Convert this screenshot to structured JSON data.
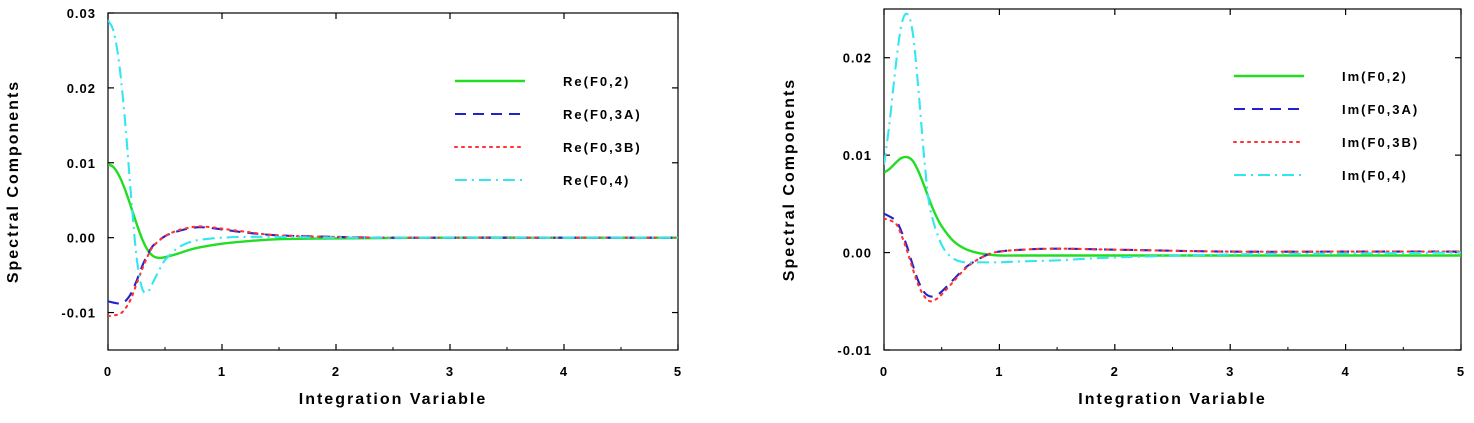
{
  "chart_data": [
    {
      "type": "line",
      "title": "",
      "xlabel": "Integration Variable",
      "ylabel": "Spectral Components",
      "xlim": [
        0,
        5
      ],
      "ylim": [
        -0.015,
        0.03
      ],
      "x_ticks": [
        "0",
        "1",
        "2",
        "3",
        "4",
        "5"
      ],
      "y_ticks": [
        "-0.01",
        "0.00",
        "0.01",
        "0.02",
        "0.03"
      ],
      "grid": false,
      "legend_position": "top-right",
      "series": [
        {
          "name": "Re(F0,2)",
          "color": "#22dd22",
          "style": "solid",
          "x": [
            0,
            0.05,
            0.1,
            0.15,
            0.2,
            0.25,
            0.3,
            0.35,
            0.4,
            0.45,
            0.5,
            0.6,
            0.7,
            0.8,
            1.0,
            1.2,
            1.5,
            2.0,
            3.0,
            4.0,
            5.0
          ],
          "y": [
            0.0098,
            0.0094,
            0.0082,
            0.0064,
            0.0042,
            0.0019,
            -0.0002,
            -0.0017,
            -0.0025,
            -0.0027,
            -0.0026,
            -0.0022,
            -0.0017,
            -0.0013,
            -0.0008,
            -0.0005,
            -0.0002,
            -0.0001,
            0.0,
            0.0,
            0.0
          ]
        },
        {
          "name": "Re(F0,3A)",
          "color": "#2222cc",
          "style": "dashed",
          "x": [
            0,
            0.1,
            0.15,
            0.2,
            0.25,
            0.3,
            0.35,
            0.4,
            0.5,
            0.6,
            0.7,
            0.8,
            0.9,
            1.0,
            1.2,
            1.5,
            2.0,
            2.5,
            3.0,
            4.0,
            5.0
          ],
          "y": [
            -0.0085,
            -0.0088,
            -0.0085,
            -0.0075,
            -0.0058,
            -0.0038,
            -0.0022,
            -0.001,
            0.0002,
            0.0008,
            0.0012,
            0.0014,
            0.0013,
            0.0011,
            0.0007,
            0.0003,
            0.0001,
            0.0,
            0.0,
            0.0,
            0.0
          ]
        },
        {
          "name": "Re(F0,3B)",
          "color": "#ff3333",
          "style": "dotted",
          "x": [
            0,
            0.1,
            0.15,
            0.2,
            0.25,
            0.3,
            0.35,
            0.4,
            0.5,
            0.6,
            0.7,
            0.8,
            0.9,
            1.0,
            1.2,
            1.5,
            2.0,
            2.5,
            3.0,
            4.0,
            5.0
          ],
          "y": [
            -0.0105,
            -0.0102,
            -0.0095,
            -0.0082,
            -0.0062,
            -0.0042,
            -0.0024,
            -0.0011,
            0.0002,
            0.0009,
            0.0013,
            0.0015,
            0.0014,
            0.0012,
            0.0008,
            0.0003,
            0.0001,
            0.0,
            0.0,
            0.0,
            0.0
          ]
        },
        {
          "name": "Re(F0,4)",
          "color": "#33e6f0",
          "style": "dashdot",
          "x": [
            0,
            0.05,
            0.1,
            0.15,
            0.2,
            0.25,
            0.3,
            0.35,
            0.4,
            0.45,
            0.5,
            0.6,
            0.7,
            0.8,
            1.0,
            1.2,
            1.5,
            2.0,
            3.0,
            4.0,
            5.0
          ],
          "y": [
            0.029,
            0.0275,
            0.023,
            0.0155,
            0.006,
            -0.0025,
            -0.0068,
            -0.0072,
            -0.0058,
            -0.0043,
            -0.003,
            -0.0015,
            -0.0007,
            -0.0003,
            0.0,
            0.0001,
            0.0001,
            0.0,
            0.0,
            0.0,
            0.0
          ]
        }
      ]
    },
    {
      "type": "line",
      "title": "",
      "xlabel": "Integration Variable",
      "ylabel": "Spectral Components",
      "xlim": [
        0,
        5
      ],
      "ylim": [
        -0.01,
        0.025
      ],
      "x_ticks": [
        "0",
        "1",
        "2",
        "3",
        "4",
        "5"
      ],
      "y_ticks": [
        "-0.01",
        "0.00",
        "0.01",
        "0.02"
      ],
      "grid": false,
      "legend_position": "top-right",
      "series": [
        {
          "name": "Im(F0,2)",
          "color": "#22dd22",
          "style": "solid",
          "x": [
            0,
            0.05,
            0.1,
            0.15,
            0.2,
            0.25,
            0.3,
            0.35,
            0.4,
            0.45,
            0.5,
            0.6,
            0.7,
            0.8,
            0.9,
            1.0,
            1.2,
            1.5,
            2.0,
            3.0,
            4.0,
            5.0
          ],
          "y": [
            0.0082,
            0.0086,
            0.0092,
            0.0097,
            0.0098,
            0.0094,
            0.0083,
            0.0068,
            0.0052,
            0.0038,
            0.0027,
            0.0012,
            0.0004,
            0.0,
            -0.0002,
            -0.0003,
            -0.0003,
            -0.0003,
            -0.0003,
            -0.0003,
            -0.0003,
            -0.0003
          ]
        },
        {
          "name": "Im(F0,3A)",
          "color": "#2222cc",
          "style": "dashed",
          "x": [
            0,
            0.1,
            0.15,
            0.2,
            0.25,
            0.3,
            0.35,
            0.4,
            0.45,
            0.5,
            0.6,
            0.7,
            0.8,
            0.9,
            1.0,
            1.2,
            1.5,
            2.0,
            3.0,
            4.0,
            5.0
          ],
          "y": [
            0.004,
            0.0033,
            0.0022,
            0.0006,
            -0.0013,
            -0.003,
            -0.0041,
            -0.0045,
            -0.0044,
            -0.004,
            -0.0028,
            -0.0016,
            -0.0008,
            -0.0002,
            0.0001,
            0.0003,
            0.0004,
            0.0003,
            0.0001,
            0.0001,
            0.0001
          ]
        },
        {
          "name": "Im(F0,3B)",
          "color": "#ff3333",
          "style": "dotted",
          "x": [
            0,
            0.1,
            0.15,
            0.2,
            0.25,
            0.3,
            0.35,
            0.4,
            0.45,
            0.5,
            0.6,
            0.7,
            0.8,
            0.9,
            1.0,
            1.2,
            1.5,
            2.0,
            3.0,
            4.0,
            5.0
          ],
          "y": [
            0.0035,
            0.003,
            0.0018,
            0.0002,
            -0.0017,
            -0.0034,
            -0.0045,
            -0.005,
            -0.0048,
            -0.0043,
            -0.003,
            -0.0017,
            -0.0008,
            -0.0002,
            0.0001,
            0.0003,
            0.0004,
            0.0003,
            0.0001,
            0.0001,
            0.0001
          ]
        },
        {
          "name": "Im(F0,4)",
          "color": "#33e6f0",
          "style": "dashdot",
          "x": [
            0,
            0.05,
            0.1,
            0.15,
            0.2,
            0.25,
            0.3,
            0.35,
            0.4,
            0.5,
            0.6,
            0.7,
            0.8,
            1.0,
            1.2,
            1.5,
            2.0,
            3.0,
            4.0,
            5.0
          ],
          "y": [
            0.009,
            0.0135,
            0.019,
            0.0233,
            0.0245,
            0.0225,
            0.0165,
            0.0095,
            0.0045,
            0.0008,
            -0.0006,
            -0.001,
            -0.001,
            -0.001,
            -0.0009,
            -0.0008,
            -0.0005,
            -0.0002,
            -0.0001,
            0.0
          ]
        }
      ]
    }
  ]
}
